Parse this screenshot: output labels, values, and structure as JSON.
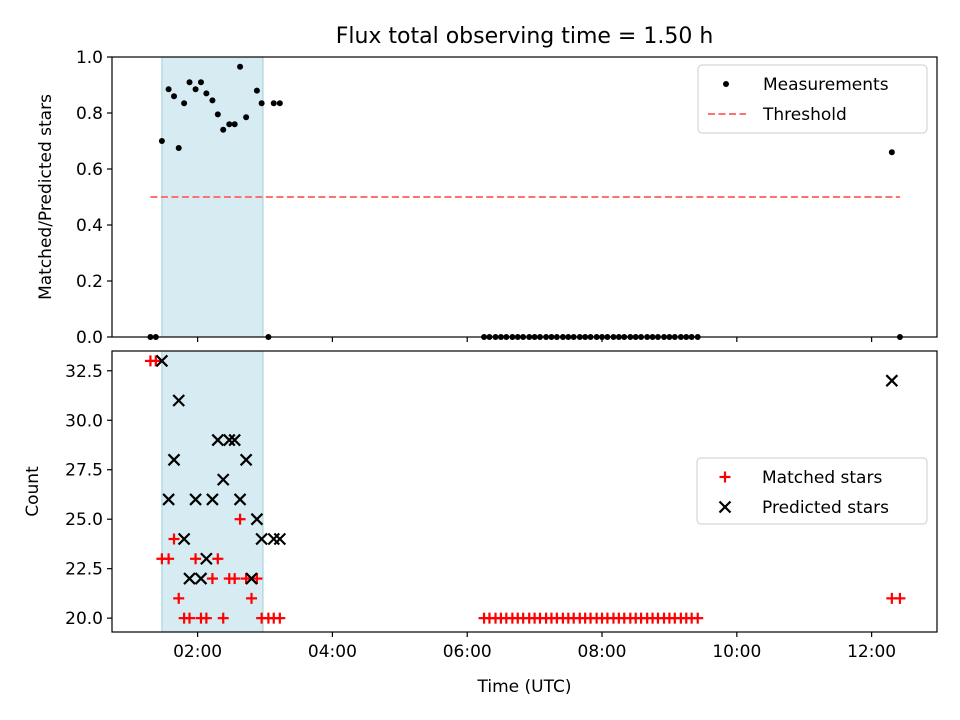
{
  "title": "Flux total observing time = 1.50 h",
  "chart_data": [
    {
      "type": "scatter",
      "ylabel": "Matched/Predicted stars",
      "ylim": [
        0,
        1.0
      ],
      "yticks": [
        0.0,
        0.2,
        0.4,
        0.6,
        0.8,
        1.0
      ],
      "ytick_labels": [
        "0.0",
        "0.2",
        "0.4",
        "0.6",
        "0.8",
        "1.0"
      ],
      "xlim": [
        0.73,
        12.97
      ],
      "xticks": [
        2,
        4,
        6,
        8,
        10,
        12
      ],
      "xtick_labels_visible": false,
      "shaded_span": [
        1.47,
        2.97
      ],
      "legend_position": "top-right",
      "series": [
        {
          "name": "Measurements",
          "kind": "points",
          "color": "#000000",
          "x": [
            1.3,
            1.38,
            1.47,
            1.57,
            1.65,
            1.72,
            1.8,
            1.88,
            1.97,
            2.05,
            2.13,
            2.22,
            2.3,
            2.38,
            2.47,
            2.55,
            2.63,
            2.72,
            2.88,
            2.95,
            3.05,
            3.13,
            3.22,
            6.25,
            6.33,
            6.42,
            6.5,
            6.58,
            6.67,
            6.75,
            6.83,
            6.92,
            7.0,
            7.08,
            7.17,
            7.25,
            7.33,
            7.42,
            7.5,
            7.58,
            7.67,
            7.75,
            7.83,
            7.92,
            8.0,
            8.08,
            8.17,
            8.25,
            8.33,
            8.42,
            8.5,
            8.58,
            8.67,
            8.75,
            8.83,
            8.92,
            9.0,
            9.08,
            9.17,
            9.25,
            9.33,
            9.42,
            12.3,
            12.42
          ],
          "y": [
            0.0,
            0.0,
            0.7,
            0.885,
            0.86,
            0.675,
            0.835,
            0.91,
            0.885,
            0.91,
            0.87,
            0.845,
            0.795,
            0.74,
            0.76,
            0.76,
            0.965,
            0.785,
            0.88,
            0.835,
            0.0,
            0.835,
            0.835,
            0.0,
            0.0,
            0.0,
            0.0,
            0.0,
            0.0,
            0.0,
            0.0,
            0.0,
            0.0,
            0.0,
            0.0,
            0.0,
            0.0,
            0.0,
            0.0,
            0.0,
            0.0,
            0.0,
            0.0,
            0.0,
            0.0,
            0.0,
            0.0,
            0.0,
            0.0,
            0.0,
            0.0,
            0.0,
            0.0,
            0.0,
            0.0,
            0.0,
            0.0,
            0.0,
            0.0,
            0.0,
            0.0,
            0.0,
            0.66,
            0.0
          ]
        },
        {
          "name": "Threshold",
          "kind": "dashed-line",
          "color": "#ff7070",
          "x": [
            1.3,
            12.42
          ],
          "y": [
            0.5,
            0.5
          ]
        }
      ]
    },
    {
      "type": "scatter",
      "ylabel": "Count",
      "xlabel": "Time (UTC)",
      "ylim": [
        19.3,
        33.5
      ],
      "yticks": [
        20.0,
        22.5,
        25.0,
        27.5,
        30.0,
        32.5
      ],
      "ytick_labels": [
        "20.0",
        "22.5",
        "25.0",
        "27.5",
        "30.0",
        "32.5"
      ],
      "xlim": [
        0.73,
        12.97
      ],
      "xticks": [
        2,
        4,
        6,
        8,
        10,
        12
      ],
      "xtick_labels": [
        "02:00",
        "04:00",
        "06:00",
        "08:00",
        "10:00",
        "12:00"
      ],
      "shaded_span": [
        1.47,
        2.97
      ],
      "legend_position": "center-right",
      "series": [
        {
          "name": "Matched stars",
          "marker": "+",
          "color": "#ff0000",
          "x": [
            1.3,
            1.38,
            1.47,
            1.57,
            1.65,
            1.72,
            1.8,
            1.88,
            1.97,
            2.05,
            2.13,
            2.22,
            2.3,
            2.38,
            2.47,
            2.55,
            2.63,
            2.72,
            2.8,
            2.88,
            2.95,
            3.05,
            3.13,
            3.22,
            6.25,
            6.33,
            6.42,
            6.5,
            6.58,
            6.67,
            6.75,
            6.83,
            6.92,
            7.0,
            7.08,
            7.17,
            7.25,
            7.33,
            7.42,
            7.5,
            7.58,
            7.67,
            7.75,
            7.83,
            7.92,
            8.0,
            8.08,
            8.17,
            8.25,
            8.33,
            8.42,
            8.5,
            8.58,
            8.67,
            8.75,
            8.83,
            8.92,
            9.0,
            9.08,
            9.17,
            9.25,
            9.33,
            9.42,
            12.3,
            12.42
          ],
          "y": [
            33,
            33,
            23,
            23,
            24,
            21,
            20,
            20,
            23,
            20,
            20,
            22,
            23,
            20,
            22,
            22,
            25,
            22,
            21,
            22,
            20,
            20,
            20,
            20,
            20,
            20,
            20,
            20,
            20,
            20,
            20,
            20,
            20,
            20,
            20,
            20,
            20,
            20,
            20,
            20,
            20,
            20,
            20,
            20,
            20,
            20,
            20,
            20,
            20,
            20,
            20,
            20,
            20,
            20,
            20,
            20,
            20,
            20,
            20,
            20,
            20,
            20,
            20,
            21,
            21
          ]
        },
        {
          "name": "Predicted stars",
          "marker": "x",
          "color": "#000000",
          "x": [
            1.47,
            1.57,
            1.65,
            1.72,
            1.8,
            1.88,
            1.97,
            2.05,
            2.13,
            2.22,
            2.3,
            2.38,
            2.47,
            2.55,
            2.63,
            2.72,
            2.8,
            2.88,
            2.95,
            3.13,
            3.22,
            12.3
          ],
          "y": [
            33,
            26,
            28,
            31,
            24,
            22,
            26,
            22,
            23,
            26,
            29,
            27,
            29,
            29,
            26,
            28,
            22,
            25,
            24,
            24,
            24,
            32
          ]
        }
      ]
    }
  ]
}
